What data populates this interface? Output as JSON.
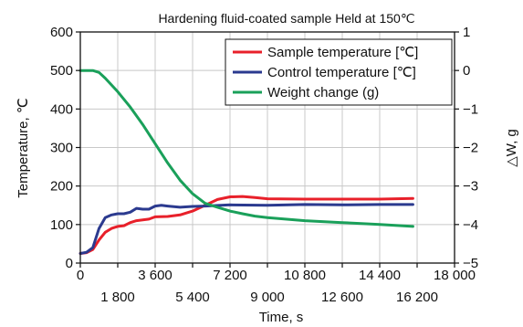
{
  "chart_data": {
    "type": "line",
    "title": "Hardening fluid-coated sample  Held at 150℃",
    "xlabel": "Time, s",
    "ylabel_left": "Temperature, ℃",
    "ylabel_right": "△W, g",
    "xlim": [
      0,
      18000
    ],
    "ylim_left": [
      0,
      600
    ],
    "ylim_right": [
      -5,
      1
    ],
    "x_ticks_upper": [
      "0",
      "3 600",
      "7 200",
      "10 800",
      "14 400",
      "18 000"
    ],
    "x_ticks_lower": [
      "1 800",
      "5 400",
      "9 000",
      "12 600",
      "16 200"
    ],
    "y_ticks_left": [
      "0",
      "100",
      "200",
      "300",
      "400",
      "500",
      "600"
    ],
    "y_ticks_right": [
      "1",
      "0",
      "−1",
      "−2",
      "−3",
      "−4",
      "−5"
    ],
    "grid": true,
    "legend_position": "top-right",
    "series": [
      {
        "name": "Sample temperature [℃]",
        "axis": "left",
        "color": "#e8202a",
        "points": [
          [
            0,
            25
          ],
          [
            300,
            27
          ],
          [
            600,
            35
          ],
          [
            900,
            60
          ],
          [
            1200,
            80
          ],
          [
            1500,
            90
          ],
          [
            1800,
            95
          ],
          [
            2100,
            97
          ],
          [
            2400,
            105
          ],
          [
            2700,
            110
          ],
          [
            3000,
            112
          ],
          [
            3300,
            114
          ],
          [
            3600,
            120
          ],
          [
            4200,
            121
          ],
          [
            4800,
            125
          ],
          [
            5400,
            135
          ],
          [
            6000,
            150
          ],
          [
            6600,
            165
          ],
          [
            7200,
            172
          ],
          [
            7800,
            173
          ],
          [
            8400,
            170
          ],
          [
            9000,
            167
          ],
          [
            10800,
            166
          ],
          [
            12600,
            166
          ],
          [
            14400,
            166
          ],
          [
            16000,
            168
          ]
        ]
      },
      {
        "name": "Control temperature [℃]",
        "axis": "left",
        "color": "#2b3a8f",
        "points": [
          [
            0,
            25
          ],
          [
            300,
            28
          ],
          [
            600,
            40
          ],
          [
            900,
            90
          ],
          [
            1200,
            118
          ],
          [
            1500,
            125
          ],
          [
            1800,
            128
          ],
          [
            2100,
            128
          ],
          [
            2400,
            132
          ],
          [
            2700,
            142
          ],
          [
            3000,
            140
          ],
          [
            3300,
            140
          ],
          [
            3600,
            148
          ],
          [
            3900,
            150
          ],
          [
            4200,
            148
          ],
          [
            4800,
            145
          ],
          [
            5400,
            147
          ],
          [
            6000,
            148
          ],
          [
            7200,
            151
          ],
          [
            9000,
            150
          ],
          [
            10800,
            152
          ],
          [
            12600,
            151
          ],
          [
            14400,
            152
          ],
          [
            16000,
            152
          ]
        ]
      },
      {
        "name": "Weight change (g)",
        "axis": "right",
        "color": "#1aa05a",
        "points": [
          [
            0,
            0
          ],
          [
            600,
            0
          ],
          [
            900,
            -0.05
          ],
          [
            1200,
            -0.2
          ],
          [
            1800,
            -0.55
          ],
          [
            2400,
            -0.95
          ],
          [
            3000,
            -1.4
          ],
          [
            3600,
            -1.9
          ],
          [
            4200,
            -2.4
          ],
          [
            4800,
            -2.85
          ],
          [
            5400,
            -3.2
          ],
          [
            6000,
            -3.45
          ],
          [
            6600,
            -3.55
          ],
          [
            7200,
            -3.65
          ],
          [
            7800,
            -3.72
          ],
          [
            8400,
            -3.78
          ],
          [
            9000,
            -3.82
          ],
          [
            10800,
            -3.9
          ],
          [
            12600,
            -3.95
          ],
          [
            14400,
            -4.0
          ],
          [
            16000,
            -4.05
          ]
        ]
      }
    ]
  }
}
